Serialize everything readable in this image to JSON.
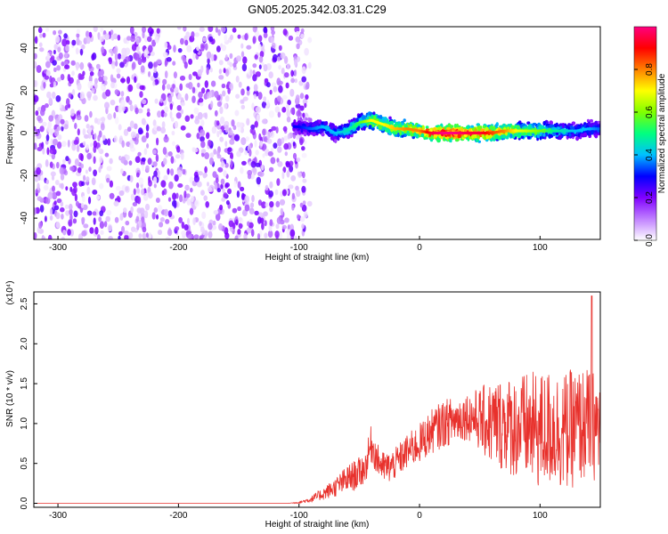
{
  "title": "GN05.2025.342.03.31.C29",
  "chart_data": [
    {
      "type": "heatmap",
      "xlabel": "Height of straight line (km)",
      "ylabel": "Frequency (Hz)",
      "xlim": [
        -320,
        150
      ],
      "ylim": [
        -50,
        50
      ],
      "x_ticks": [
        -300,
        -200,
        -100,
        0,
        100
      ],
      "y_ticks": [
        -40,
        -20,
        0,
        20,
        40
      ],
      "x_tick_labels": [
        "-300",
        "-200",
        "-100",
        "0",
        "100"
      ],
      "y_tick_labels": [
        "-40",
        "-20",
        "0",
        "20",
        "40"
      ],
      "colorbar": {
        "label": "Normalized spectral amplitude",
        "range": [
          0,
          1
        ],
        "ticks": [
          0,
          0.2,
          0.4,
          0.6,
          0.8
        ],
        "tick_labels": [
          "0.0",
          "0.2",
          "0.4",
          "0.6",
          "0.8"
        ],
        "colors": [
          "#ffffff",
          "#c080ff",
          "#8000ff",
          "#0000ff",
          "#00c0ff",
          "#00ff80",
          "#80ff00",
          "#ffff00",
          "#ff8000",
          "#ff0000",
          "#ff0080"
        ]
      },
      "noise_region": {
        "x": [
          -320,
          -97
        ],
        "amplitude": 0.15
      },
      "ridge": [
        {
          "x": -100,
          "freq": 3,
          "amp": 0.3
        },
        {
          "x": -90,
          "freq": 2,
          "amp": 0.35
        },
        {
          "x": -80,
          "freq": 3,
          "amp": 0.4
        },
        {
          "x": -70,
          "freq": 0,
          "amp": 0.4
        },
        {
          "x": -60,
          "freq": 1,
          "amp": 0.45
        },
        {
          "x": -50,
          "freq": 5,
          "amp": 0.55
        },
        {
          "x": -40,
          "freq": 6,
          "amp": 0.7
        },
        {
          "x": -30,
          "freq": 4,
          "amp": 0.7
        },
        {
          "x": -20,
          "freq": 2,
          "amp": 0.75
        },
        {
          "x": -10,
          "freq": 2,
          "amp": 0.8
        },
        {
          "x": 0,
          "freq": 1,
          "amp": 0.8
        },
        {
          "x": 10,
          "freq": 0,
          "amp": 0.95
        },
        {
          "x": 20,
          "freq": 0,
          "amp": 1.0
        },
        {
          "x": 30,
          "freq": 0,
          "amp": 1.0
        },
        {
          "x": 40,
          "freq": 0,
          "amp": 0.95
        },
        {
          "x": 50,
          "freq": 0,
          "amp": 0.95
        },
        {
          "x": 60,
          "freq": 0,
          "amp": 0.85
        },
        {
          "x": 70,
          "freq": 1,
          "amp": 0.8
        },
        {
          "x": 80,
          "freq": 1,
          "amp": 0.7
        },
        {
          "x": 90,
          "freq": 1,
          "amp": 0.65
        },
        {
          "x": 100,
          "freq": 1,
          "amp": 0.6
        },
        {
          "x": 110,
          "freq": 1,
          "amp": 0.5
        },
        {
          "x": 120,
          "freq": 1,
          "amp": 0.45
        },
        {
          "x": 130,
          "freq": 1,
          "amp": 0.4
        },
        {
          "x": 140,
          "freq": 2,
          "amp": 0.4
        },
        {
          "x": 150,
          "freq": 2,
          "amp": 0.35
        }
      ]
    },
    {
      "type": "line",
      "xlabel": "Height of straight line (km)",
      "ylabel": "SNR (10 * v/v)",
      "y_multiplier": "(x10⁴)",
      "xlim": [
        -320,
        150
      ],
      "ylim": [
        -0.05,
        2.65
      ],
      "x_ticks": [
        -300,
        -200,
        -100,
        0,
        100
      ],
      "y_ticks": [
        0,
        0.5,
        1,
        1.5,
        2,
        2.5
      ],
      "x_tick_labels": [
        "-300",
        "-200",
        "-100",
        "0",
        "100"
      ],
      "y_tick_labels": [
        "0.0",
        "0.5",
        "1.0",
        "1.5",
        "2.0",
        "2.5"
      ],
      "color": "#e8312c",
      "series": [
        {
          "x": [
            -320,
            -300,
            -250,
            -200,
            -150,
            -110,
            -100,
            -90,
            -80,
            -70,
            -60,
            -50,
            -45,
            -40,
            -35,
            -30,
            -25,
            -20,
            -10,
            0,
            10,
            20,
            30,
            40,
            50,
            60,
            70,
            80,
            90,
            100,
            110,
            120,
            130,
            140,
            150
          ],
          "y": [
            0.0,
            0.0,
            0.0,
            0.0,
            0.0,
            0.0,
            0.01,
            0.05,
            0.12,
            0.2,
            0.3,
            0.38,
            0.45,
            0.75,
            0.55,
            0.45,
            0.45,
            0.5,
            0.65,
            0.75,
            0.9,
            1.0,
            1.05,
            1.1,
            1.05,
            1.0,
            1.0,
            0.95,
            0.95,
            0.9,
            0.95,
            0.9,
            0.95,
            1.0,
            0.95
          ],
          "spread": [
            0.0,
            0.0,
            0.0,
            0.0,
            0.0,
            0.0,
            0.01,
            0.04,
            0.08,
            0.12,
            0.18,
            0.2,
            0.2,
            0.25,
            0.2,
            0.2,
            0.2,
            0.2,
            0.22,
            0.25,
            0.28,
            0.3,
            0.3,
            0.3,
            0.4,
            0.55,
            0.6,
            0.65,
            0.7,
            0.75,
            0.75,
            0.75,
            0.75,
            0.7,
            0.7
          ]
        }
      ],
      "peak": {
        "x": 143,
        "y": 2.6
      }
    }
  ]
}
